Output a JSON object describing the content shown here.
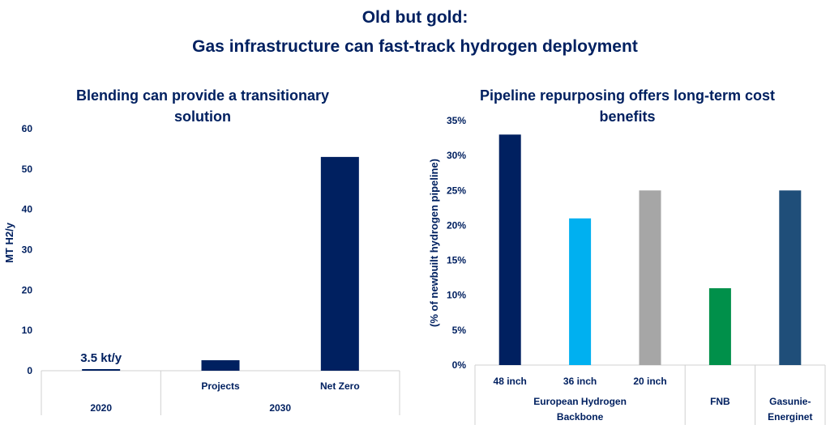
{
  "title_line1": "Old but gold:",
  "title_line2": "Gas infrastructure can fast-track hydrogen deployment",
  "chart_data": [
    {
      "type": "bar",
      "title_lines": [
        "Blending can provide a transitionary",
        "solution"
      ],
      "ylabel": "MT H2/y",
      "ylim": [
        0,
        60
      ],
      "yticks": [
        0,
        10,
        20,
        30,
        40,
        50,
        60
      ],
      "ytick_labels": [
        "0",
        "10",
        "20",
        "30",
        "40",
        "50",
        "60"
      ],
      "categories": [
        "",
        "Projects",
        "Net Zero"
      ],
      "groups": [
        {
          "label": "2020",
          "count": 1
        },
        {
          "label": "2030",
          "count": 2
        }
      ],
      "values": [
        0.0035,
        2.6,
        53
      ],
      "colors": [
        "#002060",
        "#002060",
        "#002060"
      ],
      "annotations": [
        {
          "category_index": 0,
          "text": "3.5 kt/y"
        }
      ],
      "grid": false
    },
    {
      "type": "bar",
      "title_lines": [
        "Pipeline repurposing offers long-term cost",
        "benefits"
      ],
      "ylabel": "(% of newbuilt hydrogen pipeline)",
      "ylim": [
        0,
        35
      ],
      "yticks": [
        0,
        5,
        10,
        15,
        20,
        25,
        30,
        35
      ],
      "ytick_labels": [
        "0%",
        "5%",
        "10%",
        "15%",
        "20%",
        "25%",
        "30%",
        "35%"
      ],
      "categories": [
        "48 inch",
        "36 inch",
        "20 inch",
        "",
        ""
      ],
      "groups": [
        {
          "label_lines": [
            "European Hydrogen",
            "Backbone"
          ],
          "count": 3
        },
        {
          "label_lines": [
            "FNB"
          ],
          "count": 1
        },
        {
          "label_lines": [
            "Gasunie-",
            "Energinet"
          ],
          "count": 1
        }
      ],
      "values": [
        33,
        21,
        25,
        11,
        25
      ],
      "colors": [
        "#002060",
        "#00B0F0",
        "#A6A6A6",
        "#00904A",
        "#1F4E79"
      ],
      "grid": false
    }
  ]
}
